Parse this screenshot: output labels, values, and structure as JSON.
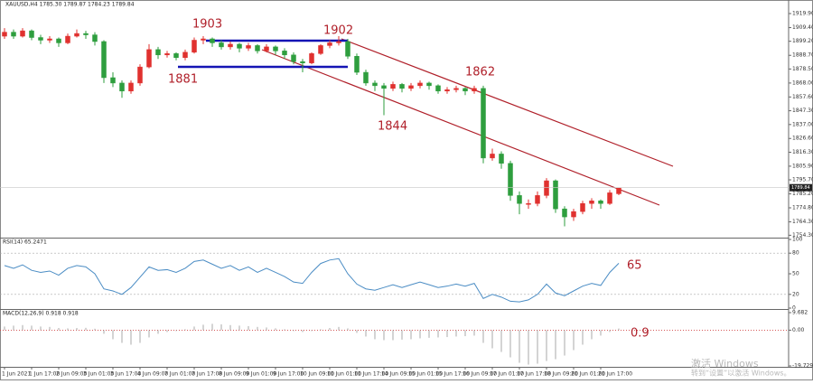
{
  "chart_data": {
    "type": "candlestick",
    "header": "XAUUSD,H4  1785.30 1789.87 1784.23 1789.84",
    "price_label": "1789.84",
    "up_color": "#e0312f",
    "down_color": "#2e9e3e",
    "candles": [
      [
        1903,
        1909,
        1901,
        1906
      ],
      [
        1906,
        1908,
        1901,
        1903
      ],
      [
        1903,
        1909,
        1902,
        1907
      ],
      [
        1907,
        1908,
        1900,
        1902
      ],
      [
        1902,
        1904,
        1897,
        1900
      ],
      [
        1900,
        1903,
        1898,
        1901
      ],
      [
        1901,
        1902,
        1895,
        1898
      ],
      [
        1898,
        1905,
        1897,
        1903
      ],
      [
        1903,
        1908,
        1902,
        1905
      ],
      [
        1905,
        1907,
        1901,
        1904
      ],
      [
        1904,
        1906,
        1896,
        1899
      ],
      [
        1899,
        1900,
        1868,
        1872
      ],
      [
        1872,
        1876,
        1865,
        1868
      ],
      [
        1868,
        1870,
        1857,
        1862
      ],
      [
        1862,
        1870,
        1860,
        1868
      ],
      [
        1868,
        1882,
        1866,
        1880
      ],
      [
        1880,
        1897,
        1879,
        1893
      ],
      [
        1893,
        1895,
        1886,
        1889
      ],
      [
        1889,
        1892,
        1887,
        1890
      ],
      [
        1890,
        1891,
        1885,
        1887
      ],
      [
        1887,
        1893,
        1885,
        1891
      ],
      [
        1891,
        1902,
        1890,
        1900
      ],
      [
        1900,
        1903,
        1897,
        1901
      ],
      [
        1901,
        1902,
        1895,
        1898
      ],
      [
        1898,
        1900,
        1893,
        1895
      ],
      [
        1895,
        1899,
        1893,
        1897
      ],
      [
        1897,
        1898,
        1891,
        1894
      ],
      [
        1894,
        1898,
        1892,
        1896
      ],
      [
        1896,
        1897,
        1890,
        1892
      ],
      [
        1892,
        1897,
        1891,
        1895
      ],
      [
        1895,
        1896,
        1889,
        1892
      ],
      [
        1892,
        1894,
        1886,
        1889
      ],
      [
        1889,
        1891,
        1882,
        1884
      ],
      [
        1884,
        1886,
        1876,
        1883
      ],
      [
        1883,
        1891,
        1882,
        1890
      ],
      [
        1890,
        1897,
        1889,
        1896
      ],
      [
        1896,
        1900,
        1894,
        1898
      ],
      [
        1898,
        1903,
        1896,
        1899
      ],
      [
        1899,
        1901,
        1886,
        1888
      ],
      [
        1888,
        1890,
        1874,
        1876
      ],
      [
        1876,
        1878,
        1866,
        1868
      ],
      [
        1868,
        1870,
        1862,
        1866
      ],
      [
        1866,
        1868,
        1844,
        1864
      ],
      [
        1864,
        1869,
        1862,
        1867
      ],
      [
        1867,
        1868,
        1861,
        1864
      ],
      [
        1864,
        1868,
        1862,
        1866
      ],
      [
        1866,
        1870,
        1864,
        1868
      ],
      [
        1868,
        1869,
        1863,
        1866
      ],
      [
        1866,
        1867,
        1860,
        1862
      ],
      [
        1862,
        1865,
        1860,
        1863
      ],
      [
        1863,
        1866,
        1861,
        1864
      ],
      [
        1864,
        1865,
        1859,
        1862
      ],
      [
        1862,
        1866,
        1860,
        1864
      ],
      [
        1864,
        1866,
        1808,
        1812
      ],
      [
        1812,
        1819,
        1810,
        1815
      ],
      [
        1815,
        1817,
        1804,
        1808
      ],
      [
        1808,
        1810,
        1780,
        1784
      ],
      [
        1784,
        1787,
        1770,
        1778
      ],
      [
        1778,
        1781,
        1774,
        1778
      ],
      [
        1778,
        1787,
        1776,
        1784
      ],
      [
        1784,
        1797,
        1782,
        1795
      ],
      [
        1795,
        1796,
        1771,
        1774
      ],
      [
        1774,
        1776,
        1761,
        1768
      ],
      [
        1768,
        1774,
        1765,
        1772
      ],
      [
        1772,
        1780,
        1770,
        1778
      ],
      [
        1778,
        1782,
        1774,
        1780
      ],
      [
        1780,
        1781,
        1774,
        1778
      ],
      [
        1778,
        1788,
        1777,
        1786
      ],
      [
        1785.3,
        1789.87,
        1784.23,
        1789.84
      ]
    ],
    "ylim": [
      1753.2,
      1929.35
    ],
    "yticks": [
      {
        "value": 1919.9,
        "label": "1919.90"
      },
      {
        "value": 1909.4,
        "label": "1909.40"
      },
      {
        "value": 1899.2,
        "label": "1899.20"
      },
      {
        "value": 1888.7,
        "label": "1888.70"
      },
      {
        "value": 1878.5,
        "label": "1878.50"
      },
      {
        "value": 1868,
        "label": "1868.00"
      },
      {
        "value": 1857.6,
        "label": "1857.60"
      },
      {
        "value": 1847.3,
        "label": "1847.30"
      },
      {
        "value": 1837,
        "label": "1837.00"
      },
      {
        "value": 1826.6,
        "label": "1826.60"
      },
      {
        "value": 1816.3,
        "label": "1816.30"
      },
      {
        "value": 1805.9,
        "label": "1805.90"
      },
      {
        "value": 1795.7,
        "label": "1795.70"
      },
      {
        "value": 1785.2,
        "label": "1785.20"
      },
      {
        "value": 1774.8,
        "label": "1774.80"
      },
      {
        "value": 1764.3,
        "label": "1764.30"
      },
      {
        "value": 1754.3,
        "label": "1754.30"
      }
    ],
    "annotations": [
      1903,
      1902,
      1881,
      1862,
      1844
    ],
    "time_labels": [
      "1 Jun 2021",
      "1 Jun 17:00",
      "2 Jun 09:00",
      "3 Jun 01:00",
      "3 Jun 17:00",
      "4 Jun 09:00",
      "7 Jun 01:00",
      "7 Jun 17:00",
      "8 Jun 09:00",
      "9 Jun 01:00",
      "9 Jun 17:00",
      "10 Jun 09:00",
      "11 Jun 01:00",
      "11 Jun 17:00",
      "14 Jun 09:00",
      "15 Jun 01:00",
      "15 Jun 17:00",
      "16 Jun 09:00",
      "17 Jun 01:00",
      "17 Jun 17:00",
      "18 Jun 09:00",
      "21 Jun 01:00",
      "21 Jun 17:00"
    ],
    "rsi": {
      "title": "RSI(14) 65.2471",
      "color": "#4a8cc4",
      "ylim": [
        0,
        100
      ],
      "yticks": [
        100,
        80,
        50,
        20,
        0
      ],
      "levels": [
        80,
        20
      ],
      "annotation": 65,
      "values": [
        62,
        58,
        63,
        55,
        52,
        54,
        48,
        58,
        62,
        60,
        50,
        28,
        25,
        20,
        30,
        45,
        60,
        55,
        56,
        52,
        58,
        68,
        70,
        64,
        58,
        62,
        55,
        60,
        52,
        58,
        52,
        46,
        38,
        36,
        52,
        65,
        70,
        72,
        50,
        35,
        28,
        26,
        30,
        34,
        30,
        34,
        38,
        34,
        30,
        32,
        35,
        32,
        36,
        14,
        20,
        16,
        10,
        9,
        12,
        20,
        35,
        22,
        18,
        25,
        32,
        36,
        33,
        52,
        65.2471
      ]
    },
    "macd": {
      "title": "MACD(12,26,9) 0.918 0.918",
      "color": "#a8a8a8",
      "ylim": [
        -19.729,
        9.682
      ],
      "yticks": [
        {
          "value": 9.682,
          "label": "9.682"
        },
        {
          "value": 0,
          "label": "0.00"
        },
        {
          "value": -19.729,
          "label": "-19.729"
        }
      ],
      "annotation": 0.9,
      "values": [
        2,
        2.5,
        2.8,
        2.5,
        2,
        1.8,
        1.2,
        1,
        1.2,
        1.3,
        0.8,
        -2,
        -5,
        -7,
        -8,
        -7,
        -4,
        -2,
        -1,
        -0.5,
        0.5,
        2,
        3,
        3.5,
        3.2,
        2.8,
        2.5,
        2.2,
        1.8,
        1.5,
        1,
        0.5,
        -0.5,
        -1,
        -0.5,
        0.5,
        1.2,
        1.8,
        1,
        -1.5,
        -3.5,
        -5,
        -5.5,
        -5.5,
        -5.2,
        -5,
        -4.5,
        -4.2,
        -4,
        -3.8,
        -3.5,
        -3.3,
        -3,
        -7,
        -10,
        -12,
        -15,
        -18,
        -19,
        -18.5,
        -17,
        -16,
        -14,
        -11,
        -8,
        -5,
        -3,
        -1,
        0.918
      ]
    },
    "watermark": [
      "激活 Windows",
      "转到“设置”以激活 Windows。"
    ]
  }
}
